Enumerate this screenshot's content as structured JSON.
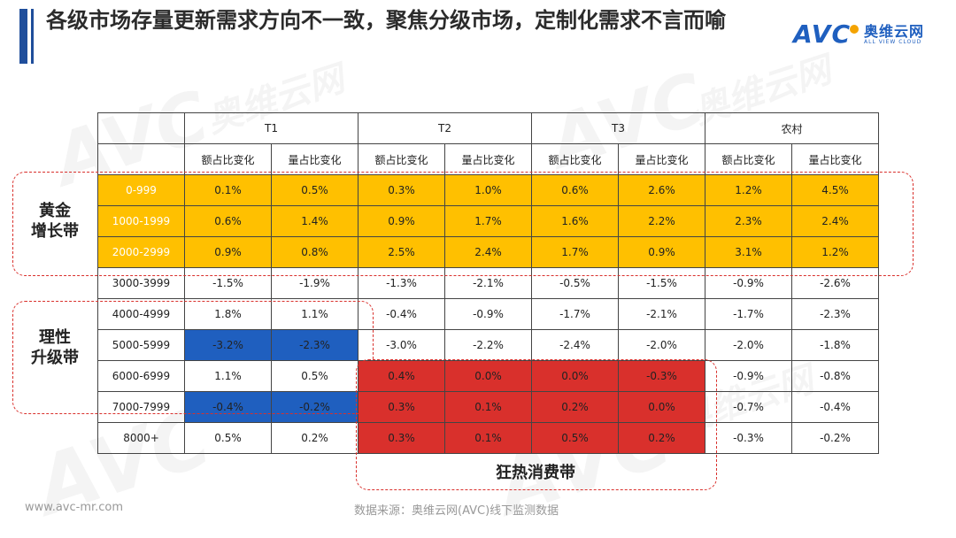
{
  "header": {
    "title": "各级市场存量更新需求方向不一致，聚焦分级市场，定制化需求不言而喻",
    "logo_mark": "AVC",
    "logo_cn": "奥维云网",
    "logo_en": "ALL VIEW CLOUD"
  },
  "watermark": {
    "text": "AVC 奥维云网 ALL VIEW CLOUD"
  },
  "table": {
    "groups": [
      "T1",
      "T2",
      "T3",
      "农村"
    ],
    "subheaders": [
      "额占比变化",
      "量占比变化",
      "额占比变化",
      "量占比变化",
      "额占比变化",
      "量占比变化",
      "额占比变化",
      "量占比变化"
    ],
    "rows": [
      {
        "label": "0-999",
        "values": [
          "0.1%",
          "0.5%",
          "0.3%",
          "1.0%",
          "0.6%",
          "2.6%",
          "1.2%",
          "4.5%"
        ]
      },
      {
        "label": "1000-1999",
        "values": [
          "0.6%",
          "1.4%",
          "0.9%",
          "1.7%",
          "1.6%",
          "2.2%",
          "2.3%",
          "2.4%"
        ]
      },
      {
        "label": "2000-2999",
        "values": [
          "0.9%",
          "0.8%",
          "2.5%",
          "2.4%",
          "1.7%",
          "0.9%",
          "3.1%",
          "1.2%"
        ]
      },
      {
        "label": "3000-3999",
        "values": [
          "-1.5%",
          "-1.9%",
          "-1.3%",
          "-2.1%",
          "-0.5%",
          "-1.5%",
          "-0.9%",
          "-2.6%"
        ]
      },
      {
        "label": "4000-4999",
        "values": [
          "1.8%",
          "1.1%",
          "-0.4%",
          "-0.9%",
          "-1.7%",
          "-2.1%",
          "-1.7%",
          "-2.3%"
        ]
      },
      {
        "label": "5000-5999",
        "values": [
          "-3.2%",
          "-2.3%",
          "-3.0%",
          "-2.2%",
          "-2.4%",
          "-2.0%",
          "-2.0%",
          "-1.8%"
        ]
      },
      {
        "label": "6000-6999",
        "values": [
          "1.1%",
          "0.5%",
          "0.4%",
          "0.0%",
          "0.0%",
          "-0.3%",
          "-0.9%",
          "-0.8%"
        ]
      },
      {
        "label": "7000-7999",
        "values": [
          "-0.4%",
          "-0.2%",
          "0.3%",
          "0.1%",
          "0.2%",
          "0.0%",
          "-0.7%",
          "-0.4%"
        ]
      },
      {
        "label": "8000+",
        "values": [
          "0.5%",
          "0.2%",
          "0.3%",
          "0.1%",
          "0.5%",
          "0.2%",
          "-0.3%",
          "-0.2%"
        ]
      }
    ]
  },
  "zones": {
    "gold": "黄金增长带",
    "rational": "理性升级带",
    "hot": "狂热消费带"
  },
  "colors": {
    "gold": "#ffc000",
    "blue": "#1f5fbf",
    "red": "#d9302c",
    "accent_bar": "#1f4e9b"
  },
  "footer": {
    "website": "www.avc-mr.com",
    "source": "数据来源：奥维云网(AVC)线下监测数据"
  }
}
